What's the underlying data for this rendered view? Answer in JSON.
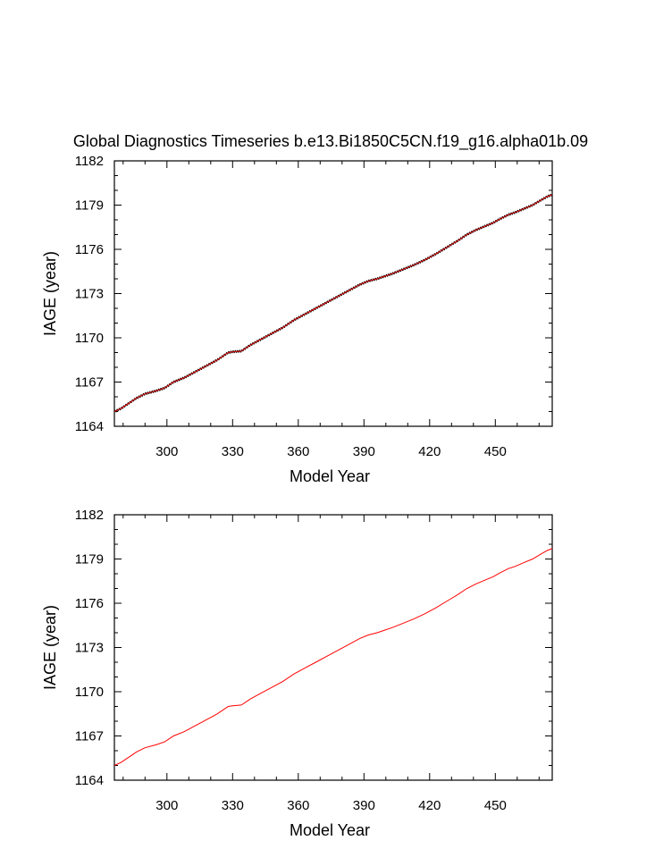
{
  "title": "Global Diagnostics Timeseries b.e13.Bi1850C5CN.f19_g16.alpha01b.09",
  "chart_data": [
    {
      "type": "line",
      "xlabel": "Model Year",
      "ylabel": "IAGE (year)",
      "xlim": [
        276,
        476
      ],
      "ylim": [
        1164,
        1182
      ],
      "xticks": [
        300,
        330,
        360,
        390,
        420,
        450
      ],
      "yticks": [
        1164,
        1167,
        1170,
        1173,
        1176,
        1179,
        1182
      ],
      "grid": false,
      "series": [
        {
          "color": "#000000",
          "overlay_color": "#e00000",
          "style": "monthly",
          "x": [
            276,
            279,
            283,
            286,
            290,
            295,
            299,
            303,
            308,
            313,
            318,
            323,
            328,
            330,
            334,
            338,
            343,
            348,
            353,
            358,
            363,
            368,
            373,
            378,
            383,
            388,
            392,
            396,
            399,
            403,
            408,
            413,
            418,
            423,
            428,
            433,
            437,
            441,
            445,
            449,
            452,
            456,
            459,
            463,
            467,
            471,
            474,
            476
          ],
          "y": [
            1165.0,
            1165.2,
            1165.6,
            1165.9,
            1166.2,
            1166.4,
            1166.6,
            1167.0,
            1167.3,
            1167.7,
            1168.1,
            1168.5,
            1169.0,
            1169.05,
            1169.1,
            1169.5,
            1169.9,
            1170.3,
            1170.7,
            1171.2,
            1171.6,
            1172.0,
            1172.4,
            1172.8,
            1173.2,
            1173.6,
            1173.85,
            1174.0,
            1174.15,
            1174.35,
            1174.65,
            1174.95,
            1175.3,
            1175.7,
            1176.15,
            1176.6,
            1177.0,
            1177.3,
            1177.55,
            1177.8,
            1178.05,
            1178.35,
            1178.5,
            1178.75,
            1179.0,
            1179.35,
            1179.6,
            1179.7
          ]
        }
      ]
    },
    {
      "type": "line",
      "xlabel": "Model Year",
      "ylabel": "IAGE (year)",
      "xlim": [
        276,
        476
      ],
      "ylim": [
        1164,
        1182
      ],
      "xticks": [
        300,
        330,
        360,
        390,
        420,
        450
      ],
      "yticks": [
        1164,
        1167,
        1170,
        1173,
        1176,
        1179,
        1182
      ],
      "grid": false,
      "series": [
        {
          "color": "#ff0000",
          "style": "annual",
          "x": [
            276,
            279,
            283,
            286,
            290,
            295,
            299,
            303,
            308,
            313,
            318,
            323,
            328,
            330,
            334,
            338,
            343,
            348,
            353,
            358,
            363,
            368,
            373,
            378,
            383,
            388,
            392,
            396,
            399,
            403,
            408,
            413,
            418,
            423,
            428,
            433,
            437,
            441,
            445,
            449,
            452,
            456,
            459,
            463,
            467,
            471,
            474,
            476
          ],
          "y": [
            1165.0,
            1165.2,
            1165.6,
            1165.9,
            1166.2,
            1166.4,
            1166.6,
            1167.0,
            1167.3,
            1167.7,
            1168.1,
            1168.5,
            1169.0,
            1169.05,
            1169.1,
            1169.5,
            1169.9,
            1170.3,
            1170.7,
            1171.2,
            1171.6,
            1172.0,
            1172.4,
            1172.8,
            1173.2,
            1173.6,
            1173.85,
            1174.0,
            1174.15,
            1174.35,
            1174.65,
            1174.95,
            1175.3,
            1175.7,
            1176.15,
            1176.6,
            1177.0,
            1177.3,
            1177.55,
            1177.8,
            1178.05,
            1178.35,
            1178.5,
            1178.75,
            1179.0,
            1179.35,
            1179.6,
            1179.7
          ]
        }
      ]
    }
  ]
}
